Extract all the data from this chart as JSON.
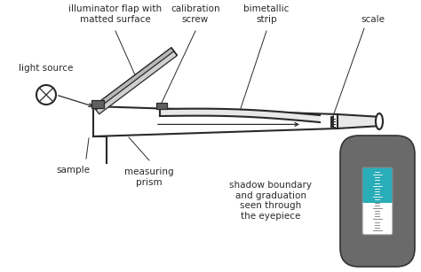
{
  "bg_color": "#ffffff",
  "line_color": "#2a2a2a",
  "gray_fill": "#c8c8c8",
  "dark_gray": "#606060",
  "light_gray": "#e8e8e8",
  "teal_color": "#29adb8",
  "capsule_gray": "#6a6a6a",
  "labels": {
    "illuminator": "illuminator flap with\nmatted surface",
    "calibration": "calibration\nscrew",
    "bimetallic": "bimetallic\nstrip",
    "scale": "scale",
    "light_source": "light source",
    "sample": "sample",
    "measuring_prism": "measuring\nprism",
    "shadow": "shadow boundary\nand graduation\nseen through\nthe eyepiece"
  },
  "font_size": 7.5,
  "figsize": [
    4.74,
    3.07
  ],
  "dpi": 100
}
